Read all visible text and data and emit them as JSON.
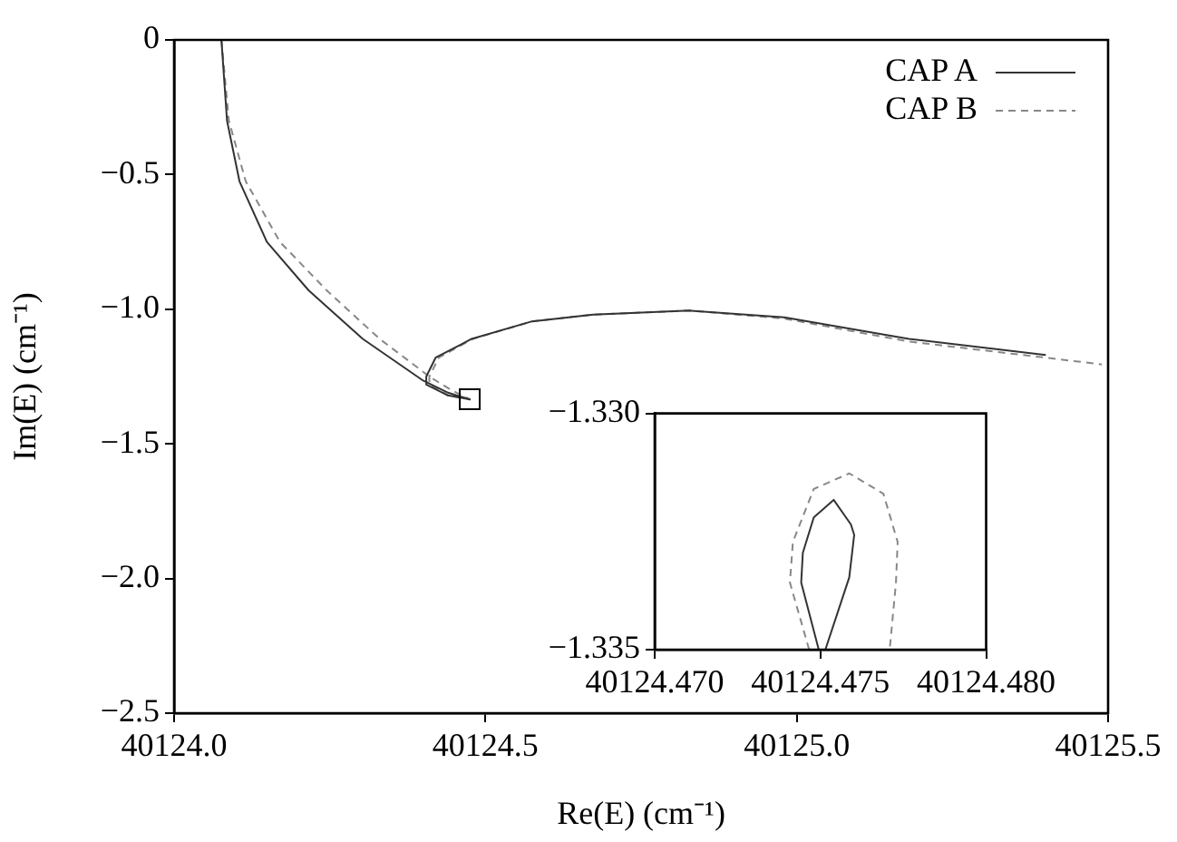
{
  "chart_data": [
    {
      "type": "line",
      "xlabel": "Re(E) (cm⁻¹)",
      "ylabel": "Im(E) (cm⁻¹)",
      "xlim": [
        40124.0,
        40125.5
      ],
      "ylim": [
        -2.5,
        0
      ],
      "xticks": [
        {
          "value": 40124.0,
          "label": "40124.0"
        },
        {
          "value": 40124.5,
          "label": "40124.5"
        },
        {
          "value": 40125.0,
          "label": "40125.0"
        },
        {
          "value": 40125.5,
          "label": "40125.5"
        }
      ],
      "yticks": [
        {
          "value": 0,
          "label": "0"
        },
        {
          "value": -0.5,
          "label": "−0.5"
        },
        {
          "value": -1.0,
          "label": "−1.0"
        },
        {
          "value": -1.5,
          "label": "−1.5"
        },
        {
          "value": -2.0,
          "label": "−2.0"
        },
        {
          "value": -2.5,
          "label": "−2.5"
        }
      ],
      "grid": false,
      "legend": "top right",
      "marker": "none",
      "series": [
        {
          "name": "CAP A",
          "color": "#333333",
          "line_style": "solid",
          "x": [
            40124.076,
            40124.085,
            40124.105,
            40124.149,
            40124.216,
            40124.303,
            40124.4,
            40124.44,
            40124.475,
            40124.44,
            40124.405,
            40124.405,
            40124.42,
            40124.478,
            40124.575,
            40124.673,
            40124.828,
            40124.98,
            40125.18,
            40125.4
          ],
          "values": [
            0,
            -0.3,
            -0.525,
            -0.75,
            -0.93,
            -1.11,
            -1.265,
            -1.31,
            -1.335,
            -1.32,
            -1.28,
            -1.25,
            -1.18,
            -1.11,
            -1.045,
            -1.02,
            -1.005,
            -1.03,
            -1.11,
            -1.17
          ]
        },
        {
          "name": "CAP B",
          "color": "#888888",
          "line_style": "dashed",
          "x": [
            40124.076,
            40124.088,
            40124.115,
            40124.17,
            40124.245,
            40124.33,
            40124.41,
            40124.445,
            40124.475,
            40124.44,
            40124.41,
            40124.41,
            40124.425,
            40124.48,
            40124.575,
            40124.673,
            40124.828,
            40124.98,
            40125.18,
            40125.4,
            40125.49
          ],
          "values": [
            0,
            -0.3,
            -0.525,
            -0.75,
            -0.93,
            -1.11,
            -1.25,
            -1.3,
            -1.335,
            -1.32,
            -1.28,
            -1.25,
            -1.18,
            -1.11,
            -1.045,
            -1.02,
            -1.005,
            -1.035,
            -1.12,
            -1.18,
            -1.205
          ]
        }
      ]
    },
    {
      "type": "line",
      "xlim": [
        40124.47,
        40124.48
      ],
      "ylim": [
        -1.335,
        -1.33
      ],
      "xticks": [
        {
          "value": 40124.47,
          "label": "40124.470"
        },
        {
          "value": 40124.475,
          "label": "40124.475"
        },
        {
          "value": 40124.48,
          "label": "40124.480"
        }
      ],
      "yticks": [
        {
          "value": -1.33,
          "label": "−1.330"
        },
        {
          "value": -1.335,
          "label": "−1.335"
        }
      ],
      "grid": false,
      "marker": "none",
      "series": [
        {
          "color": "#333333",
          "line_style": "solid",
          "x": [
            40124.47495,
            40124.47442,
            40124.47447,
            40124.4748,
            40124.4754,
            40124.47592,
            40124.47602,
            40124.47587,
            40124.47515
          ],
          "values": [
            -1.335,
            -1.33358,
            -1.33295,
            -1.3322,
            -1.33183,
            -1.33235,
            -1.33257,
            -1.33347,
            -1.335
          ]
        },
        {
          "color": "#888888",
          "line_style": "dashed",
          "x": [
            40124.47466,
            40124.47408,
            40124.47417,
            40124.4748,
            40124.47587,
            40124.4769,
            40124.47733,
            40124.47728,
            40124.47709
          ],
          "values": [
            -1.335,
            -1.33358,
            -1.33272,
            -1.3316,
            -1.33127,
            -1.3317,
            -1.33272,
            -1.33358,
            -1.335
          ]
        }
      ]
    }
  ]
}
